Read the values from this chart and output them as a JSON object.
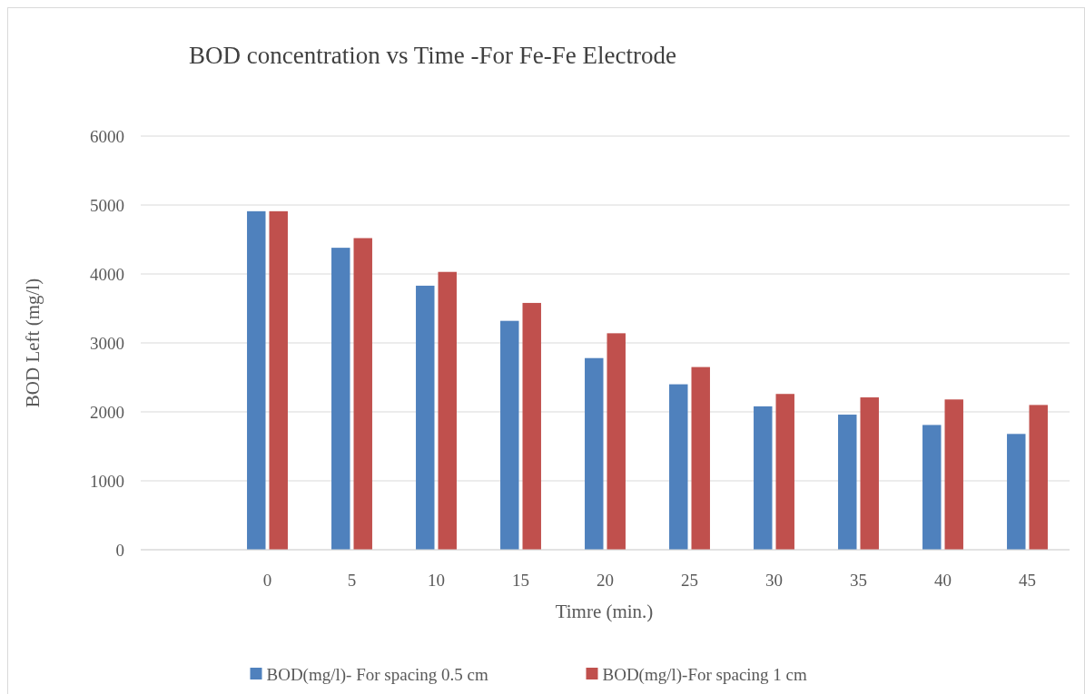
{
  "chart_data": {
    "type": "bar",
    "title": "BOD concentration vs Time -For Fe-Fe Electrode",
    "xlabel": "Timre (min.)",
    "ylabel": "BOD Left (mg/l)",
    "categories": [
      null,
      "0",
      "5",
      "10",
      "15",
      "20",
      "25",
      "30",
      "35",
      "40",
      "45"
    ],
    "series": [
      {
        "name": "BOD(mg/l)- For spacing 0.5 cm",
        "color": "#4f81bd",
        "values": [
          null,
          4910,
          4380,
          3830,
          3320,
          2780,
          2400,
          2080,
          1960,
          1810,
          1680
        ]
      },
      {
        "name": "BOD(mg/l)-For spacing 1 cm",
        "color": "#c0504d",
        "values": [
          null,
          4910,
          4520,
          4030,
          3580,
          3140,
          2650,
          2260,
          2210,
          2180,
          2100
        ]
      }
    ],
    "ylim": [
      0,
      6000
    ],
    "yticks": [
      0,
      1000,
      2000,
      3000,
      4000,
      5000,
      6000
    ],
    "grid": "y",
    "legend": "bottom"
  }
}
